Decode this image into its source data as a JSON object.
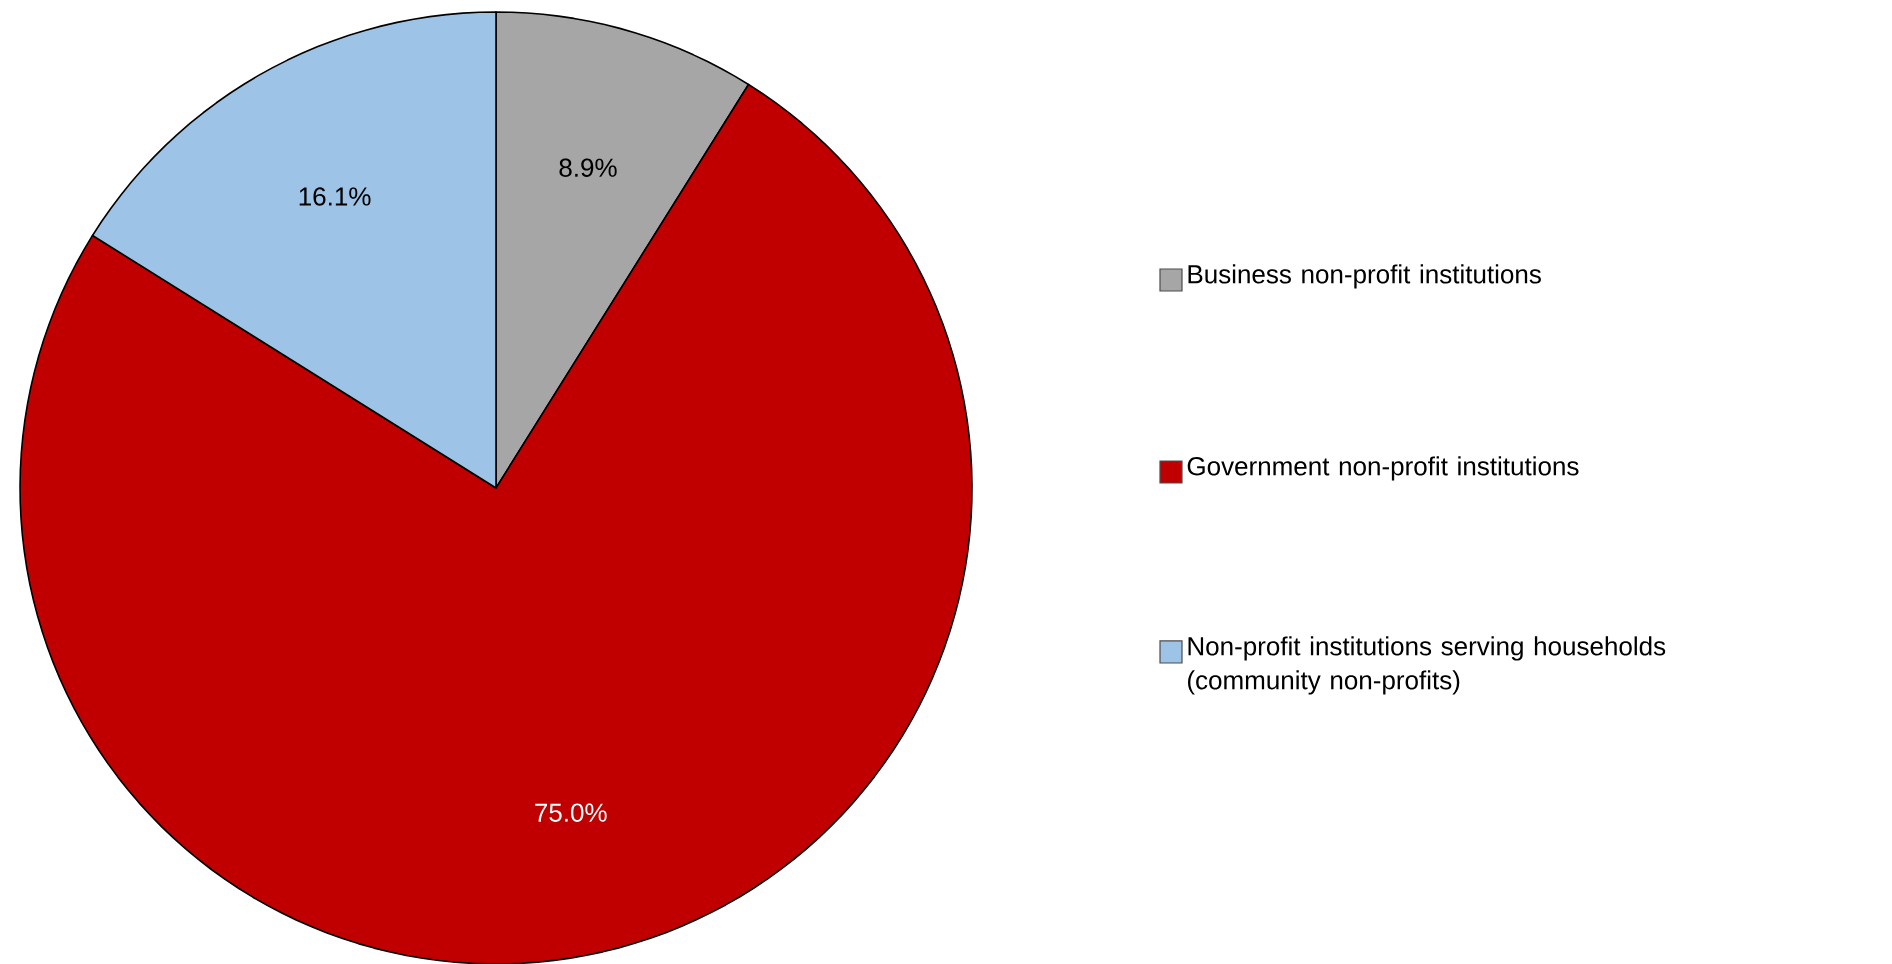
{
  "chart_data": {
    "type": "pie",
    "categories": [
      "Business non-profit institutions",
      "Government non-profit institutions",
      "Non-profit institutions serving households (community non-profits)"
    ],
    "values": [
      8.9,
      75.0,
      16.1
    ],
    "colors": [
      "#a6a6a6",
      "#c00000",
      "#9dc3e6"
    ],
    "value_labels": [
      "8.9%",
      "75.0%",
      "16.1%"
    ],
    "legend": "right"
  }
}
